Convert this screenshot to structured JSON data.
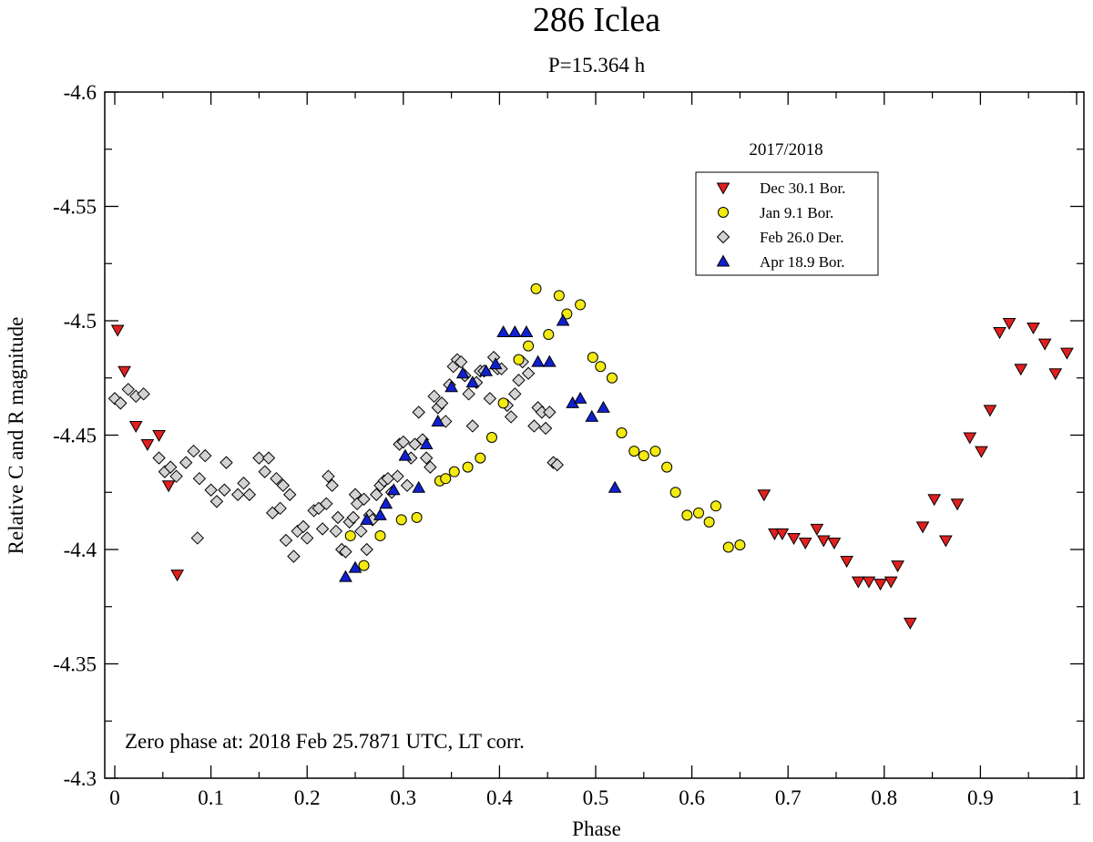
{
  "chart_data": {
    "type": "scatter",
    "title": "286 Iclea",
    "subtitle": "P=15.364 h",
    "xlabel": "Phase",
    "ylabel": "Relative C and R magnitude",
    "xlim": [
      0,
      1
    ],
    "ylim": [
      -4.6,
      -4.3
    ],
    "y_inverted": true,
    "x_ticks": [
      0,
      0.1,
      0.2,
      0.3,
      0.4,
      0.5,
      0.6,
      0.7,
      0.8,
      0.9,
      1
    ],
    "x_tick_labels": [
      "0",
      "0.1",
      "0.2",
      "0.3",
      "0.4",
      "0.5",
      "0.6",
      "0.7",
      "0.8",
      "0.9",
      "1"
    ],
    "y_ticks": [
      -4.6,
      -4.55,
      -4.5,
      -4.45,
      -4.4,
      -4.35,
      -4.3
    ],
    "y_tick_labels": [
      "-4.6",
      "-4.55",
      "-4.5",
      "-4.45",
      "-4.4",
      "-4.35",
      "-4.3"
    ],
    "grid": false,
    "legend_title": "2017/2018",
    "legend_position": "top-right",
    "annotation": "Zero phase at: 2018 Feb 25.7871 UTC, LT corr.",
    "series": [
      {
        "name": "Dec 30.1 Bor.",
        "marker": "triangle-down",
        "color": "#e02020",
        "points": [
          [
            0.003,
            -4.496
          ],
          [
            0.01,
            -4.478
          ],
          [
            0.022,
            -4.454
          ],
          [
            0.034,
            -4.446
          ],
          [
            0.046,
            -4.45
          ],
          [
            0.056,
            -4.428
          ],
          [
            0.065,
            -4.389
          ],
          [
            0.675,
            -4.424
          ],
          [
            0.686,
            -4.407
          ],
          [
            0.694,
            -4.407
          ],
          [
            0.706,
            -4.405
          ],
          [
            0.718,
            -4.403
          ],
          [
            0.73,
            -4.409
          ],
          [
            0.737,
            -4.404
          ],
          [
            0.748,
            -4.403
          ],
          [
            0.761,
            -4.395
          ],
          [
            0.773,
            -4.386
          ],
          [
            0.784,
            -4.386
          ],
          [
            0.796,
            -4.385
          ],
          [
            0.807,
            -4.386
          ],
          [
            0.814,
            -4.393
          ],
          [
            0.827,
            -4.368
          ],
          [
            0.84,
            -4.41
          ],
          [
            0.852,
            -4.422
          ],
          [
            0.864,
            -4.404
          ],
          [
            0.876,
            -4.42
          ],
          [
            0.889,
            -4.449
          ],
          [
            0.901,
            -4.443
          ],
          [
            0.91,
            -4.461
          ],
          [
            0.92,
            -4.495
          ],
          [
            0.93,
            -4.499
          ],
          [
            0.942,
            -4.479
          ],
          [
            0.955,
            -4.497
          ],
          [
            0.967,
            -4.49
          ],
          [
            0.978,
            -4.477
          ],
          [
            0.99,
            -4.486
          ]
        ]
      },
      {
        "name": "Jan 9.1 Bor.",
        "marker": "circle",
        "color": "#f2ea10",
        "points": [
          [
            0.245,
            -4.406
          ],
          [
            0.259,
            -4.393
          ],
          [
            0.276,
            -4.406
          ],
          [
            0.298,
            -4.413
          ],
          [
            0.314,
            -4.414
          ],
          [
            0.338,
            -4.43
          ],
          [
            0.344,
            -4.431
          ],
          [
            0.353,
            -4.434
          ],
          [
            0.367,
            -4.436
          ],
          [
            0.38,
            -4.44
          ],
          [
            0.392,
            -4.449
          ],
          [
            0.404,
            -4.464
          ],
          [
            0.42,
            -4.483
          ],
          [
            0.43,
            -4.489
          ],
          [
            0.438,
            -4.514
          ],
          [
            0.451,
            -4.494
          ],
          [
            0.462,
            -4.511
          ],
          [
            0.47,
            -4.503
          ],
          [
            0.484,
            -4.507
          ],
          [
            0.497,
            -4.484
          ],
          [
            0.505,
            -4.48
          ],
          [
            0.517,
            -4.475
          ],
          [
            0.527,
            -4.451
          ],
          [
            0.54,
            -4.443
          ],
          [
            0.55,
            -4.441
          ],
          [
            0.562,
            -4.443
          ],
          [
            0.574,
            -4.436
          ],
          [
            0.583,
            -4.425
          ],
          [
            0.595,
            -4.415
          ],
          [
            0.607,
            -4.416
          ],
          [
            0.618,
            -4.412
          ],
          [
            0.625,
            -4.419
          ],
          [
            0.638,
            -4.401
          ],
          [
            0.65,
            -4.402
          ]
        ]
      },
      {
        "name": "Feb 26.0 Der.",
        "marker": "diamond",
        "color": "#d3d3d3",
        "points": [
          [
            0.0,
            -4.466
          ],
          [
            0.006,
            -4.464
          ],
          [
            0.014,
            -4.47
          ],
          [
            0.022,
            -4.467
          ],
          [
            0.03,
            -4.468
          ],
          [
            0.046,
            -4.44
          ],
          [
            0.052,
            -4.434
          ],
          [
            0.058,
            -4.436
          ],
          [
            0.064,
            -4.432
          ],
          [
            0.074,
            -4.438
          ],
          [
            0.082,
            -4.443
          ],
          [
            0.086,
            -4.405
          ],
          [
            0.088,
            -4.431
          ],
          [
            0.094,
            -4.441
          ],
          [
            0.1,
            -4.426
          ],
          [
            0.106,
            -4.421
          ],
          [
            0.114,
            -4.426
          ],
          [
            0.116,
            -4.438
          ],
          [
            0.128,
            -4.424
          ],
          [
            0.134,
            -4.429
          ],
          [
            0.14,
            -4.424
          ],
          [
            0.15,
            -4.44
          ],
          [
            0.156,
            -4.434
          ],
          [
            0.16,
            -4.44
          ],
          [
            0.164,
            -4.416
          ],
          [
            0.168,
            -4.431
          ],
          [
            0.172,
            -4.418
          ],
          [
            0.175,
            -4.428
          ],
          [
            0.178,
            -4.404
          ],
          [
            0.182,
            -4.424
          ],
          [
            0.186,
            -4.397
          ],
          [
            0.19,
            -4.408
          ],
          [
            0.196,
            -4.41
          ],
          [
            0.2,
            -4.405
          ],
          [
            0.207,
            -4.417
          ],
          [
            0.212,
            -4.418
          ],
          [
            0.216,
            -4.409
          ],
          [
            0.22,
            -4.42
          ],
          [
            0.222,
            -4.432
          ],
          [
            0.226,
            -4.428
          ],
          [
            0.23,
            -4.408
          ],
          [
            0.232,
            -4.414
          ],
          [
            0.236,
            -4.4
          ],
          [
            0.24,
            -4.399
          ],
          [
            0.244,
            -4.412
          ],
          [
            0.248,
            -4.414
          ],
          [
            0.25,
            -4.424
          ],
          [
            0.252,
            -4.42
          ],
          [
            0.256,
            -4.408
          ],
          [
            0.259,
            -4.422
          ],
          [
            0.262,
            -4.4
          ],
          [
            0.265,
            -4.415
          ],
          [
            0.268,
            -4.413
          ],
          [
            0.272,
            -4.424
          ],
          [
            0.276,
            -4.428
          ],
          [
            0.28,
            -4.43
          ],
          [
            0.284,
            -4.431
          ],
          [
            0.288,
            -4.425
          ],
          [
            0.294,
            -4.432
          ],
          [
            0.296,
            -4.446
          ],
          [
            0.3,
            -4.447
          ],
          [
            0.304,
            -4.428
          ],
          [
            0.308,
            -4.44
          ],
          [
            0.312,
            -4.446
          ],
          [
            0.316,
            -4.46
          ],
          [
            0.32,
            -4.448
          ],
          [
            0.324,
            -4.44
          ],
          [
            0.328,
            -4.436
          ],
          [
            0.332,
            -4.467
          ],
          [
            0.336,
            -4.462
          ],
          [
            0.34,
            -4.464
          ],
          [
            0.344,
            -4.456
          ],
          [
            0.348,
            -4.472
          ],
          [
            0.352,
            -4.48
          ],
          [
            0.356,
            -4.483
          ],
          [
            0.36,
            -4.482
          ],
          [
            0.364,
            -4.476
          ],
          [
            0.368,
            -4.468
          ],
          [
            0.372,
            -4.454
          ],
          [
            0.376,
            -4.473
          ],
          [
            0.38,
            -4.478
          ],
          [
            0.384,
            -4.478
          ],
          [
            0.39,
            -4.466
          ],
          [
            0.394,
            -4.484
          ],
          [
            0.398,
            -4.479
          ],
          [
            0.402,
            -4.479
          ],
          [
            0.408,
            -4.463
          ],
          [
            0.412,
            -4.458
          ],
          [
            0.416,
            -4.468
          ],
          [
            0.42,
            -4.474
          ],
          [
            0.424,
            -4.482
          ],
          [
            0.43,
            -4.477
          ],
          [
            0.436,
            -4.454
          ],
          [
            0.44,
            -4.462
          ],
          [
            0.444,
            -4.46
          ],
          [
            0.448,
            -4.453
          ],
          [
            0.452,
            -4.46
          ],
          [
            0.456,
            -4.438
          ],
          [
            0.46,
            -4.437
          ]
        ]
      },
      {
        "name": "Apr 18.9 Bor.",
        "marker": "triangle-up",
        "color": "#1020d0",
        "points": [
          [
            0.24,
            -4.388
          ],
          [
            0.25,
            -4.392
          ],
          [
            0.262,
            -4.413
          ],
          [
            0.276,
            -4.415
          ],
          [
            0.282,
            -4.42
          ],
          [
            0.29,
            -4.426
          ],
          [
            0.302,
            -4.441
          ],
          [
            0.316,
            -4.427
          ],
          [
            0.324,
            -4.446
          ],
          [
            0.336,
            -4.456
          ],
          [
            0.35,
            -4.471
          ],
          [
            0.362,
            -4.477
          ],
          [
            0.372,
            -4.473
          ],
          [
            0.386,
            -4.478
          ],
          [
            0.396,
            -4.481
          ],
          [
            0.404,
            -4.495
          ],
          [
            0.416,
            -4.495
          ],
          [
            0.428,
            -4.495
          ],
          [
            0.44,
            -4.482
          ],
          [
            0.452,
            -4.482
          ],
          [
            0.466,
            -4.5
          ],
          [
            0.476,
            -4.464
          ],
          [
            0.484,
            -4.466
          ],
          [
            0.496,
            -4.458
          ],
          [
            0.508,
            -4.462
          ],
          [
            0.52,
            -4.427
          ]
        ]
      }
    ]
  }
}
